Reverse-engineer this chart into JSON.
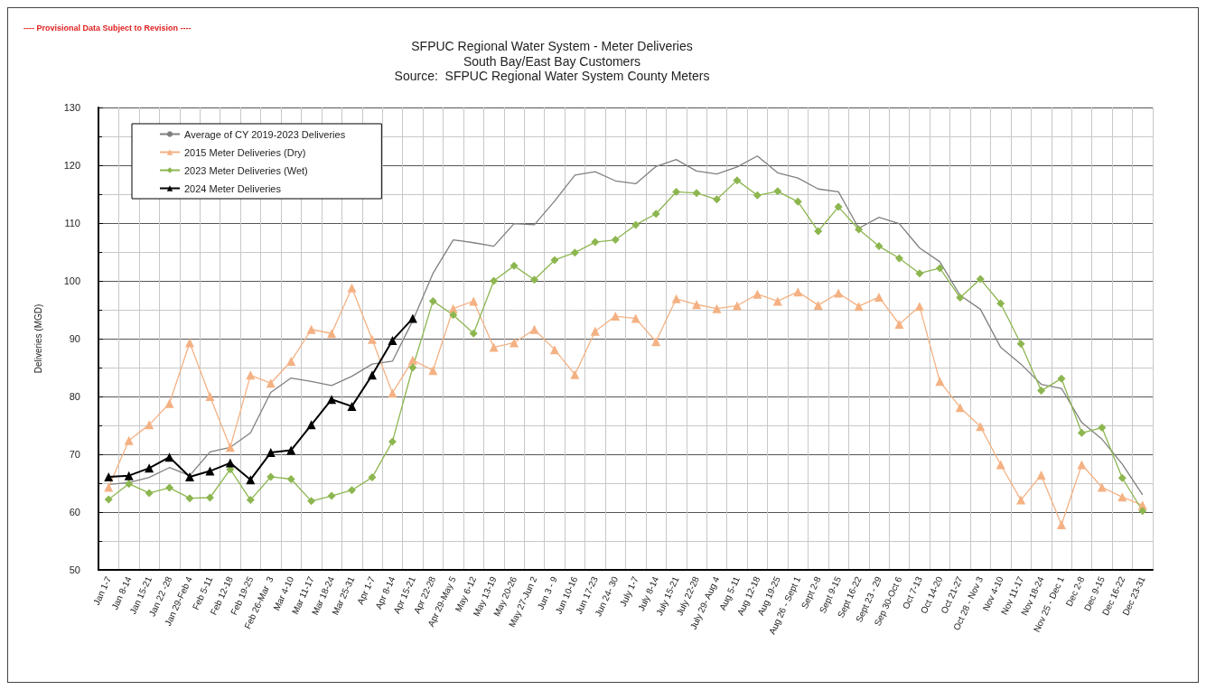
{
  "chart_data": {
    "type": "line",
    "title": "SFPUC Regional Water System - Meter Deliveries",
    "subtitle": "South Bay/East Bay Customers",
    "annotations": [
      "Source:  SFPUC Regional Water System County Meters",
      "---- Provisional Data Subject to Revision ----"
    ],
    "ylabel": "Deliveries (MGD)",
    "categories": [
      "Jan 1-7",
      "Jan 8-14",
      "Jan 15-21",
      "Jan 22 -28",
      "Jan 29-Feb 4",
      "Feb 5-11",
      "Feb 12-18",
      "Feb 19-25",
      "Feb 26-Mar  3",
      "Mar 4-10",
      "Mar 11-17",
      "Mar 18-24",
      "Mar 25-31",
      "Apr 1-7",
      "Apr 8-14",
      "Apr 15-21",
      "Apr 22-28",
      "Apr 29-May 5",
      "May 6-12",
      "May 13-19",
      "May 20-26",
      "May 27-Jun 2",
      "Jun 3 - 9",
      "Jun 10-16",
      "Jun 17-23",
      "Jun 24- 30",
      "July 1-7",
      "July 8-14",
      "July 15-21",
      "July 22-28",
      "July 29- Aug 4",
      "Aug 5-11",
      "Aug 12-18",
      "Aug 19-25",
      "Aug 26 - Sept 1",
      "Sept 2-8",
      "Sept 9-15",
      "Sept 16-22",
      "Sept 23 - 29",
      "Sep 30-Oct 6",
      "Oct 7-13",
      "Oct 14-20",
      "Oct 21-27",
      "Oct 28 - Nov 3",
      "Nov 4-10",
      "Nov 11-17",
      "Nov 18-24",
      "Nov 25 - Dec 1",
      "Dec 2-8",
      "Dec 9-15",
      "Dec 16-22",
      "Dec 23-31"
    ],
    "series": [
      {
        "name": "Average of CY 2019-2023 Deliveries",
        "color": "#808080",
        "marker": "none",
        "values": [
          64.8,
          65.1,
          66,
          67.7,
          66.3,
          70.4,
          71.2,
          73.7,
          80.7,
          83.2,
          82.6,
          81.9,
          83.5,
          85.6,
          86.1,
          93.1,
          101.3,
          107.1,
          106.6,
          106,
          109.9,
          109.7,
          113.8,
          118.3,
          118.9,
          117.3,
          116.8,
          119.8,
          121,
          119,
          118.5,
          119.7,
          121.6,
          118.7,
          117.8,
          115.9,
          115.4,
          109.1,
          111,
          109.9,
          105.7,
          103.3,
          97.5,
          95.1,
          88.5,
          85.6,
          82.1,
          81.4,
          75.5,
          72.6,
          68.3,
          63
        ]
      },
      {
        "name": "2015 Meter Deliveries (Dry)",
        "color": "#f4b183",
        "marker": "triangle",
        "values": [
          64.3,
          72.4,
          75.1,
          78.8,
          89.3,
          80,
          71.2,
          83.7,
          82.3,
          86.1,
          91.6,
          90.9,
          98.8,
          89.9,
          80.6,
          86.3,
          84.5,
          95.2,
          96.5,
          88.5,
          89.3,
          91.6,
          88.1,
          83.8,
          91.3,
          93.9,
          93.5,
          89.5,
          96.9,
          95.9,
          95.2,
          95.7,
          97.7,
          96.5,
          98.1,
          95.8,
          97.9,
          95.6,
          97.2,
          92.5,
          95.6,
          82.6,
          78.1,
          74.8,
          68.2,
          62.1,
          66.4,
          57.8,
          68.2,
          64.3,
          62.6,
          61.2
        ]
      },
      {
        "name": "2023 Meter Deliveries (Wet)",
        "color": "#8db650",
        "marker": "diamond",
        "values": [
          62.2,
          64.9,
          63.3,
          64.2,
          62.4,
          62.5,
          67.4,
          62.1,
          66.1,
          65.7,
          61.9,
          62.8,
          63.8,
          66,
          72.2,
          85,
          96.5,
          94.1,
          90.9,
          100,
          102.6,
          100.2,
          103.6,
          104.9,
          106.7,
          107.1,
          109.7,
          111.6,
          115.4,
          115.2,
          114.1,
          117.4,
          114.8,
          115.5,
          113.7,
          108.6,
          112.8,
          108.9,
          106,
          103.9,
          101.3,
          102.2,
          97.1,
          100.3,
          96.1,
          89.1,
          81,
          83.1,
          73.7,
          74.6,
          65.9,
          60.2
        ]
      },
      {
        "name": "2024 Meter Deliveries",
        "color": "#000000",
        "marker": "triangle",
        "values": [
          66.1,
          66.3,
          67.6,
          69.5,
          66.1,
          67.1,
          68.5,
          65.6,
          70.3,
          70.7,
          75.1,
          79.5,
          78.3,
          83.7,
          89.7,
          93.5,
          null,
          null,
          null,
          null,
          null,
          null,
          null,
          null,
          null,
          null,
          null,
          null,
          null,
          null,
          null,
          null,
          null,
          null,
          null,
          null,
          null,
          null,
          null,
          null,
          null,
          null,
          null,
          null,
          null,
          null,
          null,
          null,
          null,
          null,
          null,
          null
        ]
      }
    ],
    "ylim": [
      50,
      130
    ],
    "yticks": [
      50,
      60,
      70,
      80,
      90,
      100,
      110,
      120,
      130
    ],
    "grid": true,
    "legend": "top left"
  }
}
